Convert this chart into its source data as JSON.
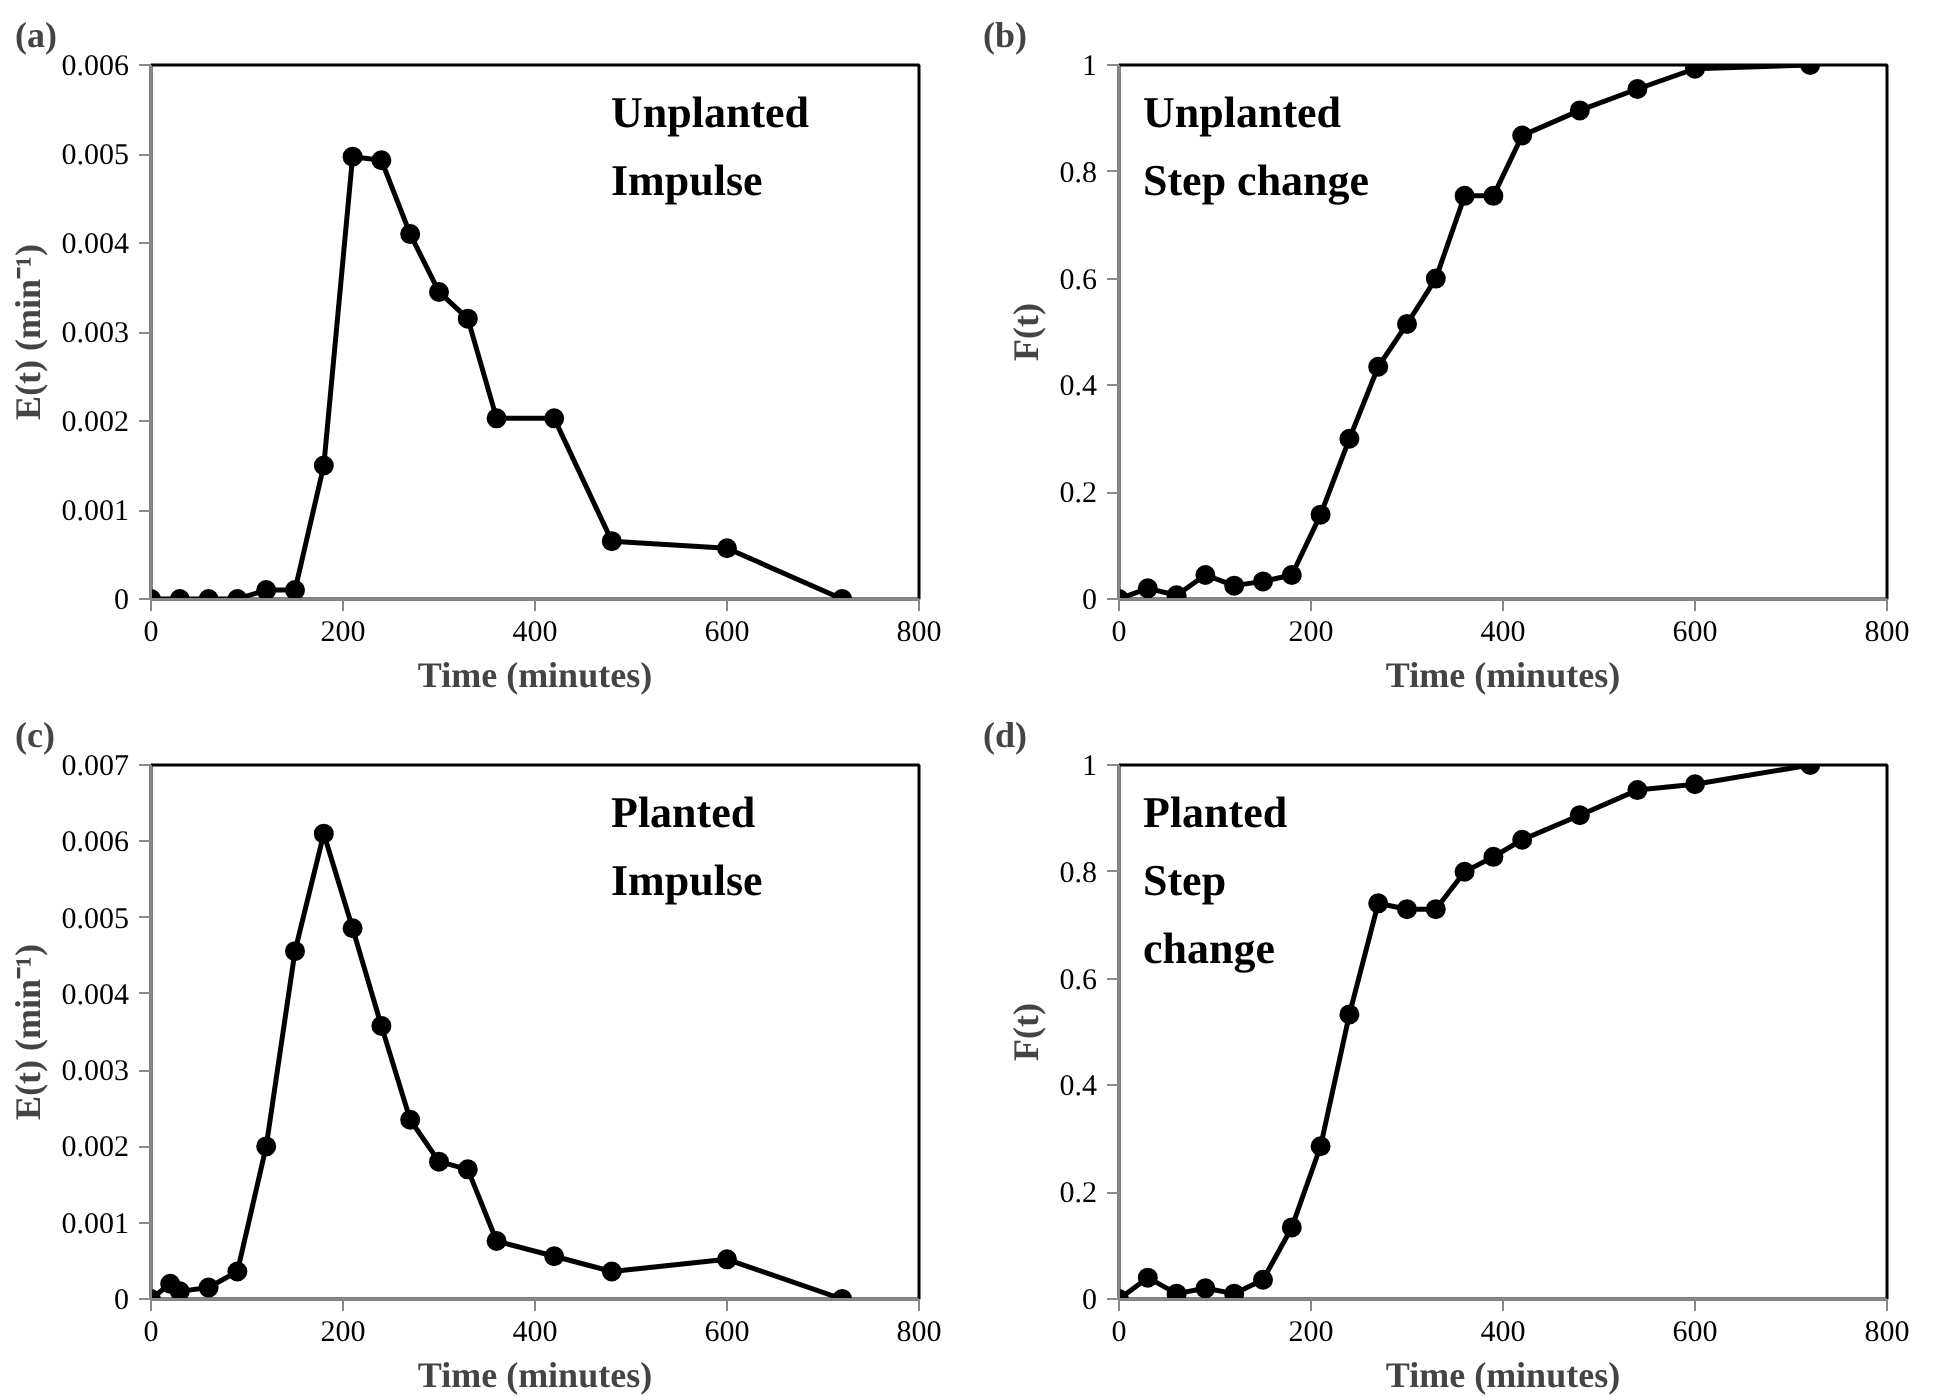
{
  "chart_data": [
    {
      "type": "line",
      "title": "(a)",
      "xlabel": "Time (minutes)",
      "ylabel": "E(t) (min⁻¹)",
      "annotations": [
        "Unplanted",
        "Impulse"
      ],
      "marker": "circle",
      "line_style": "solid",
      "grid": false,
      "xlim": [
        0,
        800
      ],
      "xticks": [
        0,
        200,
        400,
        600,
        800
      ],
      "ylim": [
        0,
        0.006
      ],
      "yticks": [
        0,
        0.001,
        0.002,
        0.003,
        0.004,
        0.005,
        0.006
      ],
      "series": [
        {
          "color": "#000000",
          "x": [
            0,
            30,
            60,
            90,
            120,
            150,
            180,
            210,
            240,
            270,
            300,
            330,
            360,
            420,
            480,
            600,
            720
          ],
          "values": [
            0,
            0,
            0,
            0,
            0.0001,
            0.0001,
            0.0015,
            0.00497,
            0.00493,
            0.0041,
            0.00345,
            0.00315,
            0.00203,
            0.00203,
            0.00065,
            0.00057,
            0
          ]
        }
      ]
    },
    {
      "type": "line",
      "title": "(b)",
      "xlabel": "Time (minutes)",
      "ylabel": "F(t)",
      "annotations": [
        "Unplanted",
        "Step change"
      ],
      "marker": "circle",
      "line_style": "solid",
      "grid": false,
      "xlim": [
        0,
        800
      ],
      "xticks": [
        0,
        200,
        400,
        600,
        800
      ],
      "ylim": [
        0,
        1
      ],
      "yticks": [
        0,
        0.2,
        0.4,
        0.6,
        0.8,
        1
      ],
      "series": [
        {
          "color": "#000000",
          "x": [
            0,
            30,
            60,
            90,
            120,
            150,
            180,
            210,
            240,
            270,
            300,
            330,
            360,
            390,
            420,
            480,
            540,
            600,
            720
          ],
          "values": [
            0,
            0.02,
            0.007,
            0.045,
            0.025,
            0.033,
            0.045,
            0.158,
            0.3,
            0.435,
            0.515,
            0.6,
            0.755,
            0.755,
            0.868,
            0.915,
            0.955,
            0.993,
            1.0
          ]
        }
      ]
    },
    {
      "type": "line",
      "title": "(c)",
      "xlabel": "Time (minutes)",
      "ylabel": "E(t) (min⁻¹)",
      "annotations": [
        "Planted",
        "Impulse"
      ],
      "marker": "circle",
      "line_style": "solid",
      "grid": false,
      "xlim": [
        0,
        800
      ],
      "xticks": [
        0,
        200,
        400,
        600,
        800
      ],
      "ylim": [
        0,
        0.007
      ],
      "yticks": [
        0,
        0.001,
        0.002,
        0.003,
        0.004,
        0.005,
        0.006,
        0.007
      ],
      "series": [
        {
          "color": "#000000",
          "x": [
            0,
            20,
            30,
            60,
            90,
            120,
            150,
            180,
            210,
            240,
            270,
            300,
            330,
            360,
            420,
            480,
            600,
            720
          ],
          "values": [
            0,
            0.0002,
            0.0001,
            0.00015,
            0.00036,
            0.002,
            0.00456,
            0.0061,
            0.00486,
            0.00358,
            0.00235,
            0.0018,
            0.0017,
            0.00076,
            0.00056,
            0.00036,
            0.00052,
            0
          ]
        }
      ]
    },
    {
      "type": "line",
      "title": "(d)",
      "xlabel": "Time (minutes)",
      "ylabel": "F(t)",
      "annotations": [
        "Planted",
        "Step",
        "change"
      ],
      "marker": "circle",
      "line_style": "solid",
      "grid": false,
      "xlim": [
        0,
        800
      ],
      "xticks": [
        0,
        200,
        400,
        600,
        800
      ],
      "ylim": [
        0,
        1
      ],
      "yticks": [
        0,
        0.2,
        0.4,
        0.6,
        0.8,
        1
      ],
      "series": [
        {
          "color": "#000000",
          "x": [
            0,
            30,
            60,
            90,
            120,
            150,
            180,
            210,
            240,
            270,
            300,
            330,
            360,
            390,
            420,
            480,
            540,
            600,
            720
          ],
          "values": [
            0,
            0.04,
            0.01,
            0.02,
            0.01,
            0.036,
            0.134,
            0.286,
            0.533,
            0.741,
            0.73,
            0.73,
            0.8,
            0.828,
            0.86,
            0.906,
            0.953,
            0.964,
            1.0
          ]
        }
      ]
    }
  ]
}
